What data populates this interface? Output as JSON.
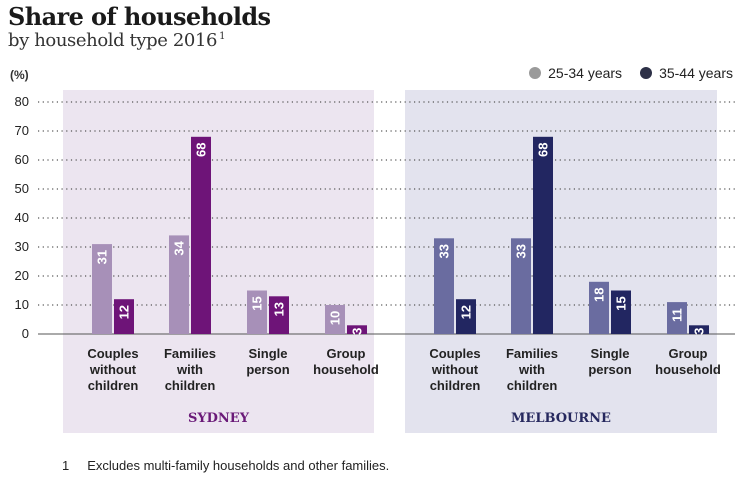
{
  "header": {
    "title": "Share of households",
    "subtitle": "by household type 2016",
    "subtitle_note_marker": "1"
  },
  "chart_data": {
    "type": "bar",
    "unit_label": "(%)",
    "ylim": [
      0,
      80
    ],
    "yticks": [
      0,
      10,
      20,
      30,
      40,
      50,
      60,
      70,
      80
    ],
    "grid": "dotted horizontal",
    "legend_position": "top-right",
    "legend": [
      {
        "label": "25-34 years",
        "color": "#9a9a9a"
      },
      {
        "label": "35-44 years",
        "color": "#2d3047"
      }
    ],
    "categories": [
      "Couples without children",
      "Families with children",
      "Single person",
      "Group household"
    ],
    "category_lines": [
      [
        "Couples",
        "without",
        "children"
      ],
      [
        "Families",
        "with",
        "children"
      ],
      [
        "Single",
        "person"
      ],
      [
        "Group",
        "household"
      ]
    ],
    "panels": [
      {
        "name": "SYDNEY",
        "panel_bg": "#ece5f0",
        "label_color": "#6a1a78",
        "series": [
          {
            "name": "25-34 years",
            "color": "#a790b8",
            "values": [
              31,
              34,
              15,
              10
            ]
          },
          {
            "name": "35-44 years",
            "color": "#6e1478",
            "values": [
              12,
              68,
              13,
              3
            ]
          }
        ]
      },
      {
        "name": "MELBOURNE",
        "panel_bg": "#e3e3ee",
        "label_color": "#26285e",
        "series": [
          {
            "name": "25-34 years",
            "color": "#6a6ca0",
            "values": [
              33,
              33,
              18,
              11
            ]
          },
          {
            "name": "35-44 years",
            "color": "#222661",
            "values": [
              12,
              68,
              15,
              3
            ]
          }
        ]
      }
    ]
  },
  "footnote": {
    "number": "1",
    "text": "Excludes multi-family households and other families."
  }
}
